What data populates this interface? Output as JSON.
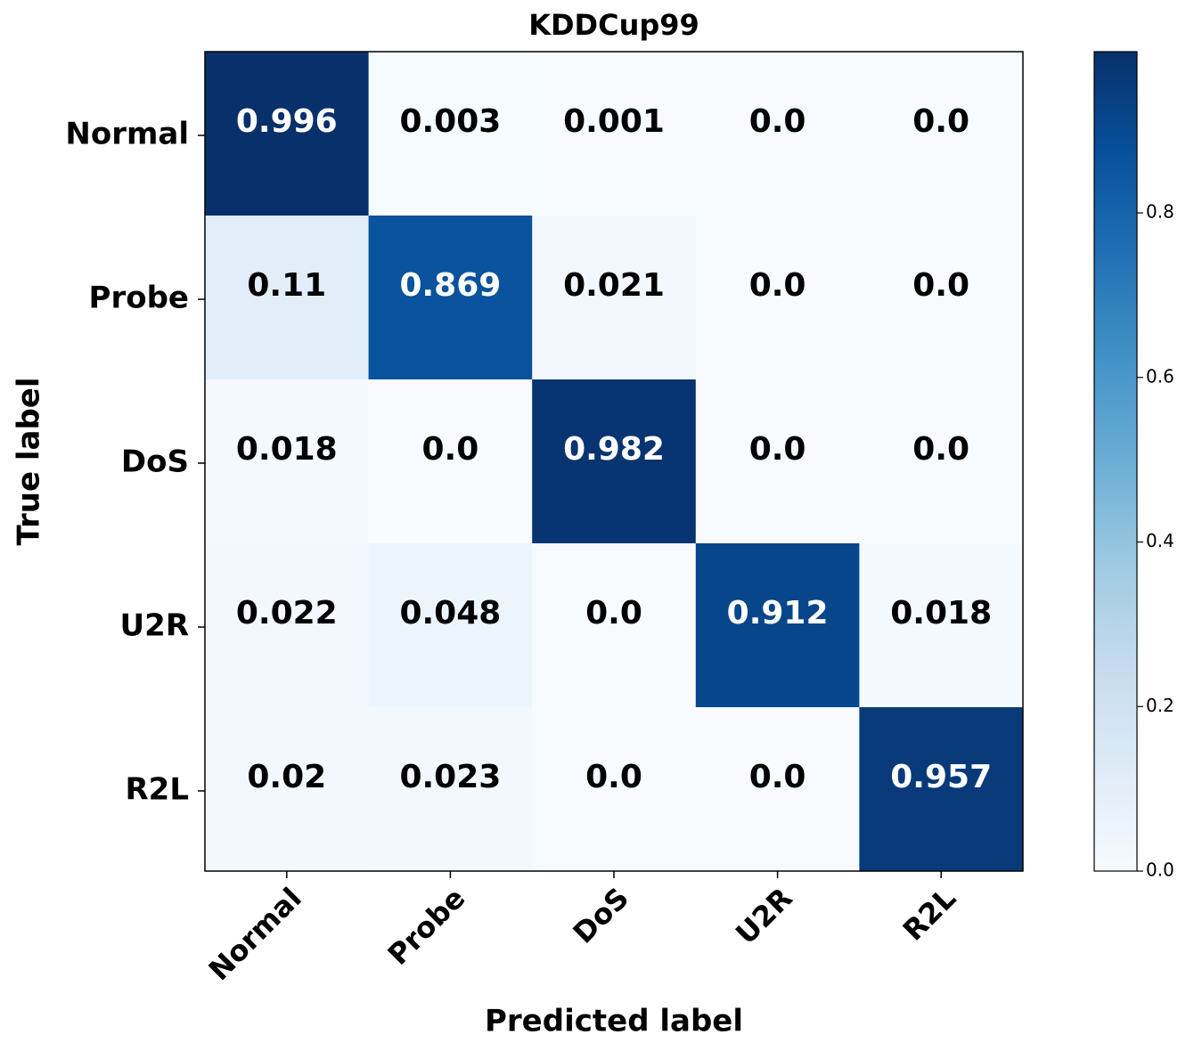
{
  "chart_data": {
    "type": "heatmap",
    "title": "KDDCup99",
    "xlabel": "Predicted label",
    "ylabel": "True label",
    "x_categories": [
      "Normal",
      "Probe",
      "DoS",
      "U2R",
      "R2L"
    ],
    "y_categories": [
      "Normal",
      "Probe",
      "DoS",
      "U2R",
      "R2L"
    ],
    "values": [
      [
        0.996,
        0.003,
        0.001,
        0,
        0
      ],
      [
        0.11,
        0.869,
        0.021,
        0,
        0
      ],
      [
        0.018,
        0,
        0.982,
        0,
        0
      ],
      [
        0.022,
        0.048,
        0,
        0.912,
        0.018
      ],
      [
        0.02,
        0.023,
        0,
        0,
        0.957
      ]
    ],
    "value_labels": [
      [
        "0.996",
        "0.003",
        "0.001",
        "0.0",
        "0.0"
      ],
      [
        "0.11",
        "0.869",
        "0.021",
        "0.0",
        "0.0"
      ],
      [
        "0.018",
        "0.0",
        "0.982",
        "0.0",
        "0.0"
      ],
      [
        "0.022",
        "0.048",
        "0.0",
        "0.912",
        "0.018"
      ],
      [
        "0.02",
        "0.023",
        "0.0",
        "0.0",
        "0.957"
      ]
    ],
    "colormap": "Blues",
    "clim": [
      0,
      0.996
    ],
    "cticks": [
      {
        "value": 0,
        "label": "0.0"
      },
      0.2,
      0.4,
      0.6,
      0.8
    ]
  }
}
